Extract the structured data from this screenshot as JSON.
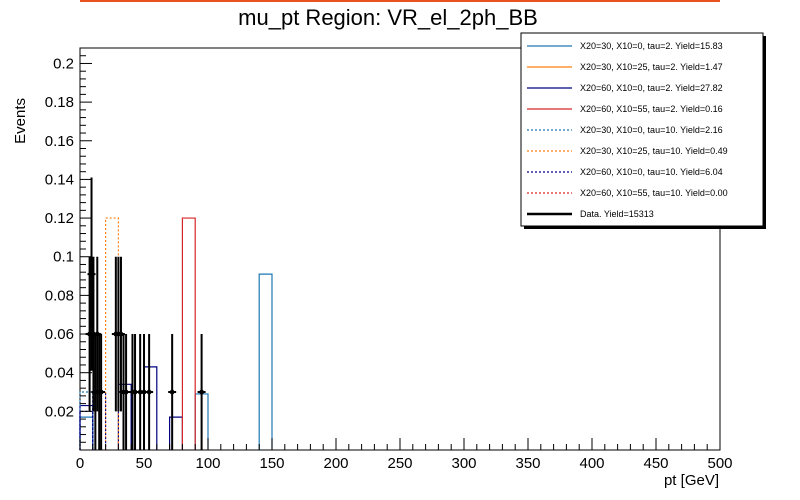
{
  "chart_data": {
    "type": "histogram",
    "title": "mu_pt Region: VR_el_2ph_BB",
    "xlabel": "pt [GeV]",
    "ylabel": "Events",
    "xlim": [
      0,
      500
    ],
    "ylim": [
      0,
      0.208
    ],
    "bin_width": 10,
    "x_ticks": [
      0,
      50,
      100,
      150,
      200,
      250,
      300,
      350,
      400,
      450,
      500
    ],
    "y_ticks": [
      0.02,
      0.04,
      0.06,
      0.08,
      0.1,
      0.12,
      0.14,
      0.16,
      0.18,
      0.2
    ],
    "grid": false,
    "legend_position": "top-right",
    "series": [
      {
        "name": "X20=30, X10=0, tau=2. Yield=15.83",
        "color": "#1f77b4",
        "style": "solid",
        "bins": [
          {
            "x": 5,
            "y": 0.017
          },
          {
            "x": 95,
            "y": 0.029
          },
          {
            "x": 145,
            "y": 0.091
          }
        ]
      },
      {
        "name": "X20=30, X10=25, tau=2. Yield=1.47",
        "color": "#ff7f0e",
        "style": "solid",
        "bins": []
      },
      {
        "name": "X20=60, X10=0, tau=2. Yield=27.82",
        "color": "#000080",
        "style": "solid",
        "bins": [
          {
            "x": 5,
            "y": 0.023
          },
          {
            "x": 35,
            "y": 0.034
          },
          {
            "x": 45,
            "y": 0.03
          },
          {
            "x": 55,
            "y": 0.043
          },
          {
            "x": 75,
            "y": 0.017
          }
        ]
      },
      {
        "name": "X20=60, X10=55, tau=2. Yield=0.16",
        "color": "#d62728",
        "style": "solid",
        "bins": [
          {
            "x": 85,
            "y": 0.12
          }
        ]
      },
      {
        "name": "X20=30, X10=0, tau=10. Yield=2.16",
        "color": "#1f77b4",
        "style": "dotted",
        "bins": [
          {
            "x": 5,
            "y": 0.03
          }
        ]
      },
      {
        "name": "X20=30, X10=25, tau=10. Yield=0.49",
        "color": "#ff7f0e",
        "style": "dotted",
        "bins": [
          {
            "x": 25,
            "y": 0.12
          }
        ]
      },
      {
        "name": "X20=60, X10=0, tau=10. Yield=6.04",
        "color": "#000080",
        "style": "dotted",
        "bins": [
          {
            "x": 5,
            "y": 0.02
          },
          {
            "x": 15,
            "y": 0.03
          }
        ]
      },
      {
        "name": "X20=60, X10=55, tau=10. Yield=0.00",
        "color": "#d62728",
        "style": "dotted",
        "bins": []
      }
    ],
    "data_series": {
      "name": "Data. Yield=15313",
      "color": "#000000",
      "points": [
        {
          "x": 7.5,
          "y": 0.06,
          "err": 0.04
        },
        {
          "x": 9,
          "y": 0.091,
          "err": 0.05
        },
        {
          "x": 10.5,
          "y": 0.06,
          "err": 0.04
        },
        {
          "x": 12,
          "y": 0.03,
          "err": 0.03
        },
        {
          "x": 13.5,
          "y": 0.06,
          "err": 0.04
        },
        {
          "x": 15,
          "y": 0.03,
          "err": 0.03
        },
        {
          "x": 16.5,
          "y": 0.03,
          "err": 0.03
        },
        {
          "x": 28,
          "y": 0.06,
          "err": 0.04
        },
        {
          "x": 30,
          "y": 0.06,
          "err": 0.04
        },
        {
          "x": 32,
          "y": 0.06,
          "err": 0.04
        },
        {
          "x": 34,
          "y": 0.03,
          "err": 0.03
        },
        {
          "x": 36,
          "y": 0.03,
          "err": 0.03
        },
        {
          "x": 41,
          "y": 0.03,
          "err": 0.03
        },
        {
          "x": 43,
          "y": 0.03,
          "err": 0.03
        },
        {
          "x": 47,
          "y": 0.03,
          "err": 0.03
        },
        {
          "x": 50,
          "y": 0.03,
          "err": 0.03
        },
        {
          "x": 54,
          "y": 0.03,
          "err": 0.03
        },
        {
          "x": 72,
          "y": 0.03,
          "err": 0.03
        },
        {
          "x": 95,
          "y": 0.03,
          "err": 0.03
        }
      ]
    }
  }
}
